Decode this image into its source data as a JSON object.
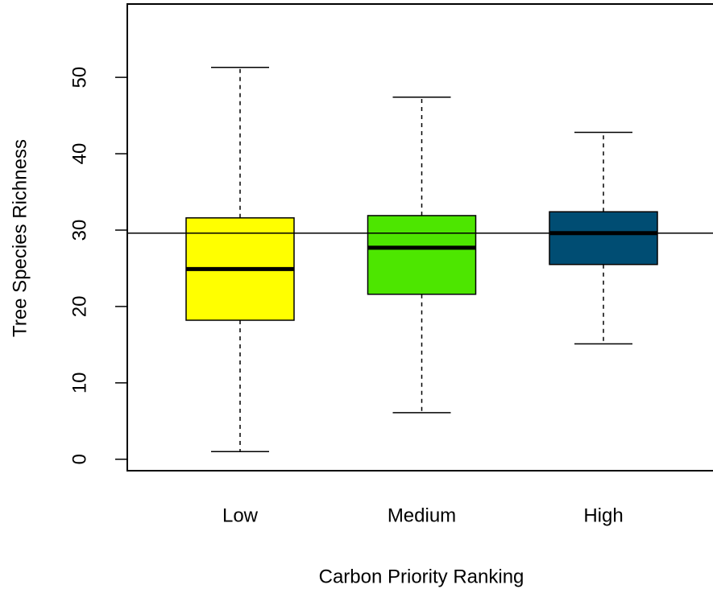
{
  "chart_data": {
    "type": "box",
    "x_label": "Carbon Priority Ranking",
    "y_label": "Tree Species Richness",
    "categories": [
      "Low",
      "Medium",
      "High"
    ],
    "whisker_low": [
      1.0,
      6.1,
      15.1
    ],
    "q1": [
      18.2,
      21.6,
      25.5
    ],
    "median": [
      24.9,
      27.7,
      29.6
    ],
    "q3": [
      31.6,
      31.9,
      32.4
    ],
    "whisker_high": [
      51.3,
      47.4,
      42.8
    ],
    "colors": [
      "#ffff00",
      "#4de600",
      "#004d73"
    ],
    "reference_line": 29.6,
    "ylim": [
      -1.5,
      59.6
    ],
    "yticks": [
      0,
      10,
      20,
      30,
      40,
      50
    ]
  }
}
